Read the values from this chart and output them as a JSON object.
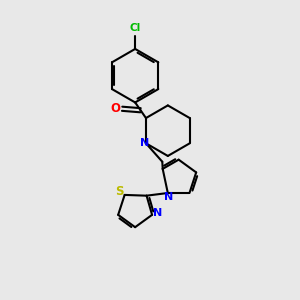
{
  "bg_color": "#e8e8e8",
  "bond_color": "#000000",
  "cl_color": "#00bb00",
  "o_color": "#ff0000",
  "n_color": "#0000ff",
  "s_color": "#bbbb00",
  "figsize": [
    3.0,
    3.0
  ],
  "dpi": 100,
  "xlim": [
    0,
    10
  ],
  "ylim": [
    0,
    10
  ]
}
